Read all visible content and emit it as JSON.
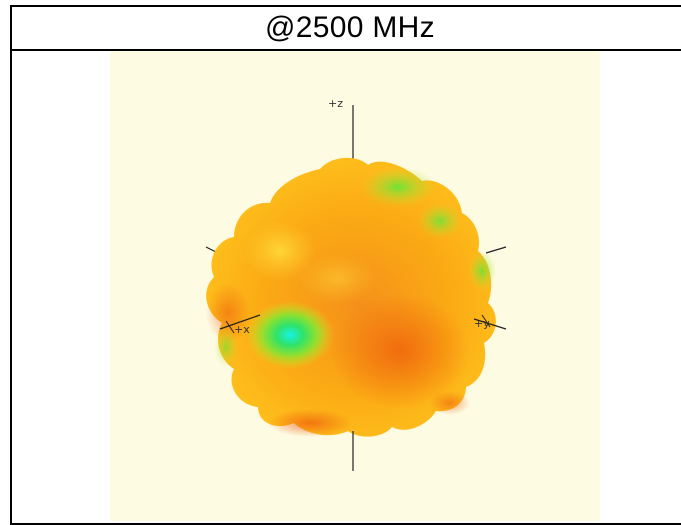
{
  "title": "@2500 MHz",
  "axes": {
    "z_label": "+z",
    "x_label": "+x",
    "y_label": "+y"
  },
  "colors": {
    "background": "#fdfbe2",
    "pattern_main": "#ffad10",
    "pattern_hot": "#f06010",
    "pattern_low": "#40e840",
    "pattern_min": "#20f0e0"
  }
}
